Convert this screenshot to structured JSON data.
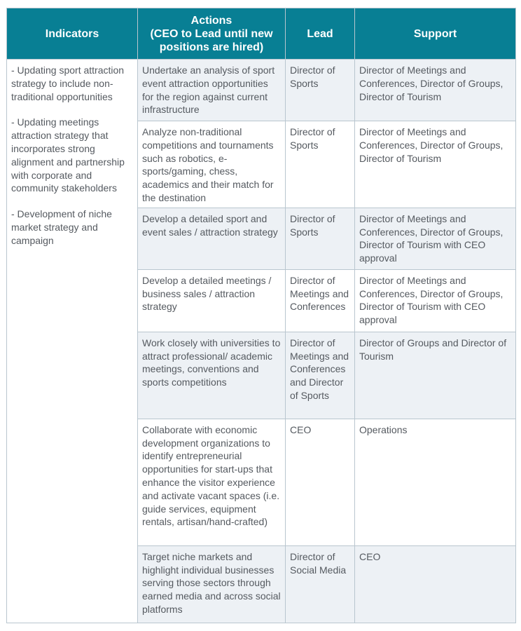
{
  "headers": {
    "indicators": "Indicators",
    "actions_line1": "Actions",
    "actions_line2": "(CEO to Lead until new positions are hired)",
    "lead": "Lead",
    "support": "Support"
  },
  "indicators": [
    "- Updating sport attraction strategy to include non-traditional opportunities",
    "- Updating meetings attraction strategy that incorporates strong alignment and partnership with corporate and community stakeholders",
    "- Development of niche market strategy and campaign"
  ],
  "rows": [
    {
      "action": "Undertake an analysis of sport event attraction opportunities for the region against current infrastructure",
      "lead": "Director of Sports",
      "support": "Director of Meetings and Conferences, Director of Groups, Director of Tourism"
    },
    {
      "action": "Analyze non-traditional competitions and tournaments such as robotics, e-sports/gaming, chess, academics and their match for the destination",
      "lead": "Director of Sports",
      "support": "Director of Meetings and Conferences, Director of Groups, Director of Tourism"
    },
    {
      "action": "Develop a detailed sport and event sales / attraction strategy",
      "lead": "Director of Sports",
      "support": "Director of Meetings and Conferences, Director of Groups, Director of Tourism with CEO approval"
    },
    {
      "action": "Develop a detailed meetings / business sales / attraction strategy",
      "lead": "Director of Meetings and Conferences",
      "support": "Director of Meetings and Conferences, Director of Groups, Director of Tourism with CEO approval"
    },
    {
      "action": "Work closely with universities to attract professional/ academic meetings, conventions and sports competitions",
      "lead": "Director of Meetings and Conferences and Director of Sports",
      "support": "Director of Groups and Director of Tourism"
    },
    {
      "action": "Collaborate with economic development organizations to identify entrepreneurial opportunities for start-ups that enhance the visitor experience and activate vacant spaces (i.e. guide services, equipment rentals, artisan/hand-crafted)",
      "lead": "CEO",
      "support": "Operations"
    },
    {
      "action": "Target niche markets and highlight individual businesses serving those sectors through earned media and across social platforms",
      "lead": "Director of Social Media",
      "support": "CEO"
    }
  ],
  "colors": {
    "header": "#087f94",
    "shaded_row": "#edf1f5",
    "border": "#b9c6cf",
    "text": "#555a60"
  }
}
